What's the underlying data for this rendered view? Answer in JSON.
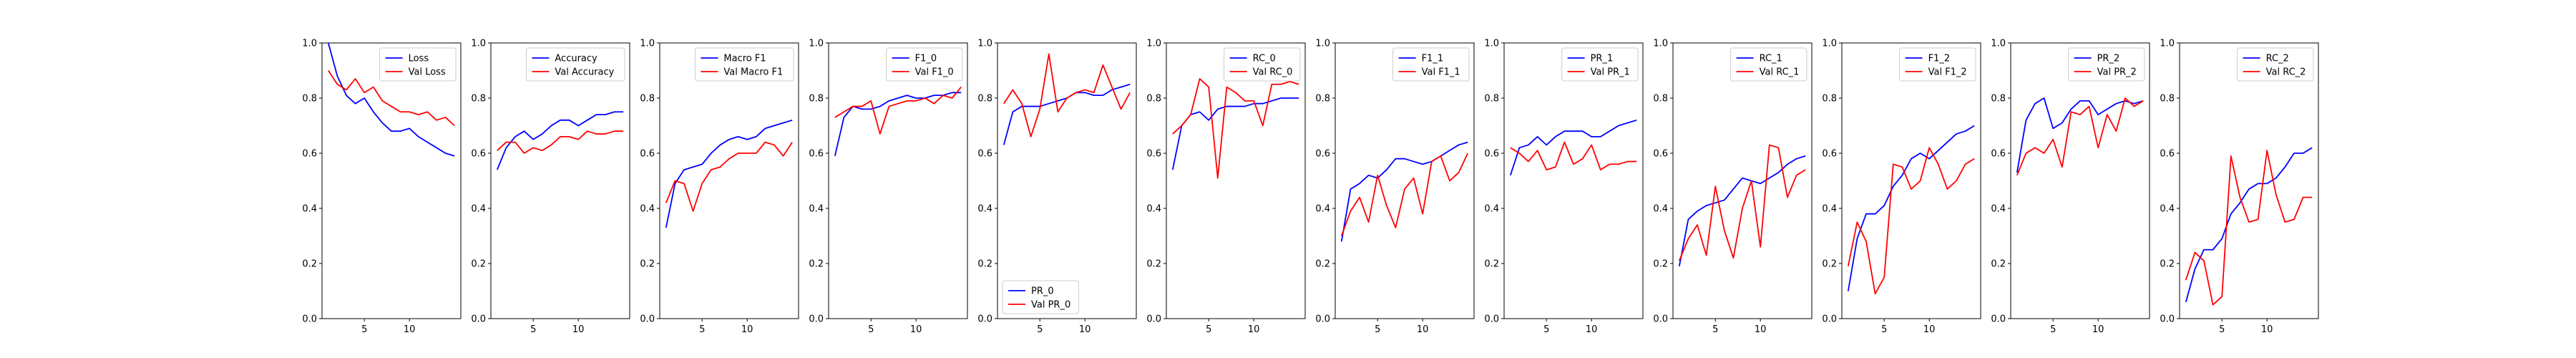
{
  "figure": {
    "background": "#ffffff",
    "series_colors": [
      "#0000ff",
      "#ff0000"
    ]
  },
  "chart_data": [
    {
      "type": "line",
      "x": [
        1,
        2,
        3,
        4,
        5,
        6,
        7,
        8,
        9,
        10,
        11,
        12,
        13,
        14,
        15
      ],
      "ylim": [
        0,
        1.0
      ],
      "xticks": [
        5,
        10
      ],
      "yticks": [
        "0.0",
        "0.2",
        "0.4",
        "0.6",
        "0.8",
        "1.0"
      ],
      "legend": "upper right",
      "series": [
        {
          "name": "Loss",
          "values": [
            1.0,
            0.88,
            0.81,
            0.78,
            0.8,
            0.75,
            0.71,
            0.68,
            0.68,
            0.69,
            0.66,
            0.64,
            0.62,
            0.6,
            0.59
          ]
        },
        {
          "name": "Val Loss",
          "values": [
            0.9,
            0.85,
            0.83,
            0.87,
            0.82,
            0.84,
            0.79,
            0.77,
            0.75,
            0.75,
            0.74,
            0.75,
            0.72,
            0.73,
            0.7
          ]
        }
      ]
    },
    {
      "type": "line",
      "x": [
        1,
        2,
        3,
        4,
        5,
        6,
        7,
        8,
        9,
        10,
        11,
        12,
        13,
        14,
        15
      ],
      "ylim": [
        0,
        1.0
      ],
      "xticks": [
        5,
        10
      ],
      "yticks": [
        "0.0",
        "0.2",
        "0.4",
        "0.6",
        "0.8",
        "1.0"
      ],
      "legend": "upper right",
      "series": [
        {
          "name": "Accuracy",
          "values": [
            0.54,
            0.62,
            0.66,
            0.68,
            0.65,
            0.67,
            0.7,
            0.72,
            0.72,
            0.7,
            0.72,
            0.74,
            0.74,
            0.75,
            0.75
          ]
        },
        {
          "name": "Val Accuracy",
          "values": [
            0.61,
            0.64,
            0.64,
            0.6,
            0.62,
            0.61,
            0.63,
            0.66,
            0.66,
            0.65,
            0.68,
            0.67,
            0.67,
            0.68,
            0.68
          ]
        }
      ]
    },
    {
      "type": "line",
      "x": [
        1,
        2,
        3,
        4,
        5,
        6,
        7,
        8,
        9,
        10,
        11,
        12,
        13,
        14,
        15
      ],
      "ylim": [
        0,
        1.0
      ],
      "xticks": [
        5,
        10
      ],
      "yticks": [
        "0.0",
        "0.2",
        "0.4",
        "0.6",
        "0.8",
        "1.0"
      ],
      "legend": "upper right",
      "series": [
        {
          "name": "Macro F1",
          "values": [
            0.33,
            0.49,
            0.54,
            0.55,
            0.56,
            0.6,
            0.63,
            0.65,
            0.66,
            0.65,
            0.66,
            0.69,
            0.7,
            0.71,
            0.72
          ]
        },
        {
          "name": "Val Macro F1",
          "values": [
            0.42,
            0.5,
            0.49,
            0.39,
            0.49,
            0.54,
            0.55,
            0.58,
            0.6,
            0.6,
            0.6,
            0.64,
            0.63,
            0.59,
            0.64
          ]
        }
      ]
    },
    {
      "type": "line",
      "x": [
        1,
        2,
        3,
        4,
        5,
        6,
        7,
        8,
        9,
        10,
        11,
        12,
        13,
        14,
        15
      ],
      "ylim": [
        0,
        1.0
      ],
      "xticks": [
        5,
        10
      ],
      "yticks": [
        "0.0",
        "0.2",
        "0.4",
        "0.6",
        "0.8",
        "1.0"
      ],
      "legend": "upper right",
      "series": [
        {
          "name": "F1_0",
          "values": [
            0.59,
            0.73,
            0.77,
            0.76,
            0.76,
            0.77,
            0.79,
            0.8,
            0.81,
            0.8,
            0.8,
            0.81,
            0.81,
            0.82,
            0.82
          ]
        },
        {
          "name": "Val F1_0",
          "values": [
            0.73,
            0.75,
            0.77,
            0.77,
            0.79,
            0.67,
            0.77,
            0.78,
            0.79,
            0.79,
            0.8,
            0.78,
            0.81,
            0.8,
            0.84
          ]
        }
      ]
    },
    {
      "type": "line",
      "x": [
        1,
        2,
        3,
        4,
        5,
        6,
        7,
        8,
        9,
        10,
        11,
        12,
        13,
        14,
        15
      ],
      "ylim": [
        0,
        1.0
      ],
      "xticks": [
        5,
        10
      ],
      "yticks": [
        "0.0",
        "0.2",
        "0.4",
        "0.6",
        "0.8",
        "1.0"
      ],
      "legend": "lower left",
      "series": [
        {
          "name": "PR_0",
          "values": [
            0.63,
            0.75,
            0.77,
            0.77,
            0.77,
            0.78,
            0.79,
            0.8,
            0.82,
            0.82,
            0.81,
            0.81,
            0.83,
            0.84,
            0.85
          ]
        },
        {
          "name": "Val PR_0",
          "values": [
            0.78,
            0.83,
            0.78,
            0.66,
            0.76,
            0.96,
            0.75,
            0.8,
            0.82,
            0.83,
            0.82,
            0.92,
            0.84,
            0.76,
            0.82
          ]
        }
      ]
    },
    {
      "type": "line",
      "x": [
        1,
        2,
        3,
        4,
        5,
        6,
        7,
        8,
        9,
        10,
        11,
        12,
        13,
        14,
        15
      ],
      "ylim": [
        0,
        1.0
      ],
      "xticks": [
        5,
        10
      ],
      "yticks": [
        "0.0",
        "0.2",
        "0.4",
        "0.6",
        "0.8",
        "1.0"
      ],
      "legend": "upper right",
      "series": [
        {
          "name": "RC_0",
          "values": [
            0.54,
            0.7,
            0.74,
            0.75,
            0.72,
            0.76,
            0.77,
            0.77,
            0.77,
            0.78,
            0.78,
            0.79,
            0.8,
            0.8,
            0.8
          ]
        },
        {
          "name": "Val RC_0",
          "values": [
            0.67,
            0.7,
            0.74,
            0.87,
            0.84,
            0.51,
            0.84,
            0.82,
            0.79,
            0.79,
            0.7,
            0.85,
            0.85,
            0.86,
            0.85
          ]
        }
      ]
    },
    {
      "type": "line",
      "x": [
        1,
        2,
        3,
        4,
        5,
        6,
        7,
        8,
        9,
        10,
        11,
        12,
        13,
        14,
        15
      ],
      "ylim": [
        0,
        1.0
      ],
      "xticks": [
        5,
        10
      ],
      "yticks": [
        "0.0",
        "0.2",
        "0.4",
        "0.6",
        "0.8",
        "1.0"
      ],
      "legend": "upper right",
      "series": [
        {
          "name": "F1_1",
          "values": [
            0.28,
            0.47,
            0.49,
            0.52,
            0.51,
            0.54,
            0.58,
            0.58,
            0.57,
            0.56,
            0.57,
            0.59,
            0.61,
            0.63,
            0.64
          ]
        },
        {
          "name": "Val F1_1",
          "values": [
            0.3,
            0.39,
            0.44,
            0.35,
            0.52,
            0.41,
            0.33,
            0.47,
            0.51,
            0.38,
            0.57,
            0.59,
            0.5,
            0.53,
            0.6
          ]
        }
      ]
    },
    {
      "type": "line",
      "x": [
        1,
        2,
        3,
        4,
        5,
        6,
        7,
        8,
        9,
        10,
        11,
        12,
        13,
        14,
        15
      ],
      "ylim": [
        0,
        1.0
      ],
      "xticks": [
        5,
        10
      ],
      "yticks": [
        "0.0",
        "0.2",
        "0.4",
        "0.6",
        "0.8",
        "1.0"
      ],
      "legend": "upper right",
      "series": [
        {
          "name": "PR_1",
          "values": [
            0.52,
            0.62,
            0.63,
            0.66,
            0.63,
            0.66,
            0.68,
            0.68,
            0.68,
            0.66,
            0.66,
            0.68,
            0.7,
            0.71,
            0.72
          ]
        },
        {
          "name": "Val PR_1",
          "values": [
            0.62,
            0.6,
            0.57,
            0.61,
            0.54,
            0.55,
            0.64,
            0.56,
            0.58,
            0.63,
            0.54,
            0.56,
            0.56,
            0.57,
            0.57
          ]
        }
      ]
    },
    {
      "type": "line",
      "x": [
        1,
        2,
        3,
        4,
        5,
        6,
        7,
        8,
        9,
        10,
        11,
        12,
        13,
        14,
        15
      ],
      "ylim": [
        0,
        1.0
      ],
      "xticks": [
        5,
        10
      ],
      "yticks": [
        "0.0",
        "0.2",
        "0.4",
        "0.6",
        "0.8",
        "1.0"
      ],
      "legend": "upper right",
      "series": [
        {
          "name": "RC_1",
          "values": [
            0.19,
            0.36,
            0.39,
            0.41,
            0.42,
            0.43,
            0.47,
            0.51,
            0.5,
            0.49,
            0.51,
            0.53,
            0.56,
            0.58,
            0.59
          ]
        },
        {
          "name": "Val RC_1",
          "values": [
            0.21,
            0.29,
            0.34,
            0.23,
            0.48,
            0.32,
            0.22,
            0.4,
            0.5,
            0.26,
            0.63,
            0.62,
            0.44,
            0.52,
            0.54
          ]
        }
      ]
    },
    {
      "type": "line",
      "x": [
        1,
        2,
        3,
        4,
        5,
        6,
        7,
        8,
        9,
        10,
        11,
        12,
        13,
        14,
        15
      ],
      "ylim": [
        0,
        1.0
      ],
      "xticks": [
        5,
        10
      ],
      "yticks": [
        "0.0",
        "0.2",
        "0.4",
        "0.6",
        "0.8",
        "1.0"
      ],
      "legend": "upper right",
      "series": [
        {
          "name": "F1_2",
          "values": [
            0.1,
            0.29,
            0.38,
            0.38,
            0.41,
            0.48,
            0.52,
            0.58,
            0.6,
            0.58,
            0.61,
            0.64,
            0.67,
            0.68,
            0.7
          ]
        },
        {
          "name": "Val F1_2",
          "values": [
            0.19,
            0.35,
            0.28,
            0.09,
            0.15,
            0.56,
            0.55,
            0.47,
            0.5,
            0.62,
            0.56,
            0.47,
            0.5,
            0.56,
            0.58
          ]
        }
      ]
    },
    {
      "type": "line",
      "x": [
        1,
        2,
        3,
        4,
        5,
        6,
        7,
        8,
        9,
        10,
        11,
        12,
        13,
        14,
        15
      ],
      "ylim": [
        0,
        1.0
      ],
      "xticks": [
        5,
        10
      ],
      "yticks": [
        "0.0",
        "0.2",
        "0.4",
        "0.6",
        "0.8",
        "1.0"
      ],
      "legend": "upper right",
      "series": [
        {
          "name": "PR_2",
          "values": [
            0.53,
            0.72,
            0.78,
            0.8,
            0.69,
            0.71,
            0.76,
            0.79,
            0.79,
            0.74,
            0.76,
            0.78,
            0.79,
            0.78,
            0.79
          ]
        },
        {
          "name": "Val PR_2",
          "values": [
            0.52,
            0.6,
            0.62,
            0.6,
            0.65,
            0.55,
            0.75,
            0.74,
            0.77,
            0.62,
            0.74,
            0.68,
            0.8,
            0.77,
            0.79
          ]
        }
      ]
    },
    {
      "type": "line",
      "x": [
        1,
        2,
        3,
        4,
        5,
        6,
        7,
        8,
        9,
        10,
        11,
        12,
        13,
        14,
        15
      ],
      "ylim": [
        0,
        1.0
      ],
      "xticks": [
        5,
        10
      ],
      "yticks": [
        "0.0",
        "0.2",
        "0.4",
        "0.6",
        "0.8",
        "1.0"
      ],
      "legend": "upper right",
      "series": [
        {
          "name": "RC_2",
          "values": [
            0.06,
            0.18,
            0.25,
            0.25,
            0.29,
            0.38,
            0.42,
            0.47,
            0.49,
            0.49,
            0.51,
            0.55,
            0.6,
            0.6,
            0.62
          ]
        },
        {
          "name": "Val RC_2",
          "values": [
            0.14,
            0.24,
            0.21,
            0.05,
            0.08,
            0.59,
            0.44,
            0.35,
            0.36,
            0.61,
            0.45,
            0.35,
            0.36,
            0.44,
            0.44
          ]
        }
      ]
    }
  ]
}
